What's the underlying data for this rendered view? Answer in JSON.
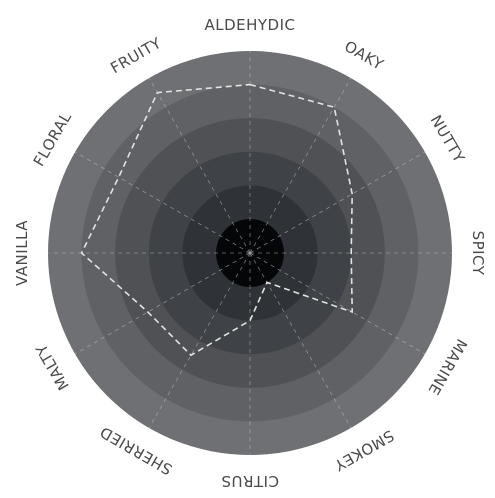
{
  "chart_data": {
    "type": "radar",
    "title": "",
    "categories": [
      "ALDEHYDIC",
      "OAKY",
      "NUTTY",
      "SPICY",
      "MARINE",
      "SMOKEY",
      "CITRUS",
      "SHERRIED",
      "MALTY",
      "VANILLA",
      "FLORAL",
      "FRUITY"
    ],
    "rlim": [
      0,
      5
    ],
    "rings": 5,
    "series": [
      {
        "values": [
          4.0,
          4.0,
          2.5,
          2.0,
          2.5,
          0.0,
          1.0,
          2.5,
          2.5,
          4.0,
          3.5,
          4.5
        ]
      }
    ],
    "grid": true,
    "colors": {
      "outer_band": "#6e7073",
      "ring_1": "#5f6164",
      "ring_2": "#4f5155",
      "ring_3": "#3f4246",
      "ring_4": "#2f3236",
      "ring_5": "#202327",
      "center": "#050608",
      "grid": "#b9bcc0",
      "series_line": "#e2e2e2"
    }
  }
}
